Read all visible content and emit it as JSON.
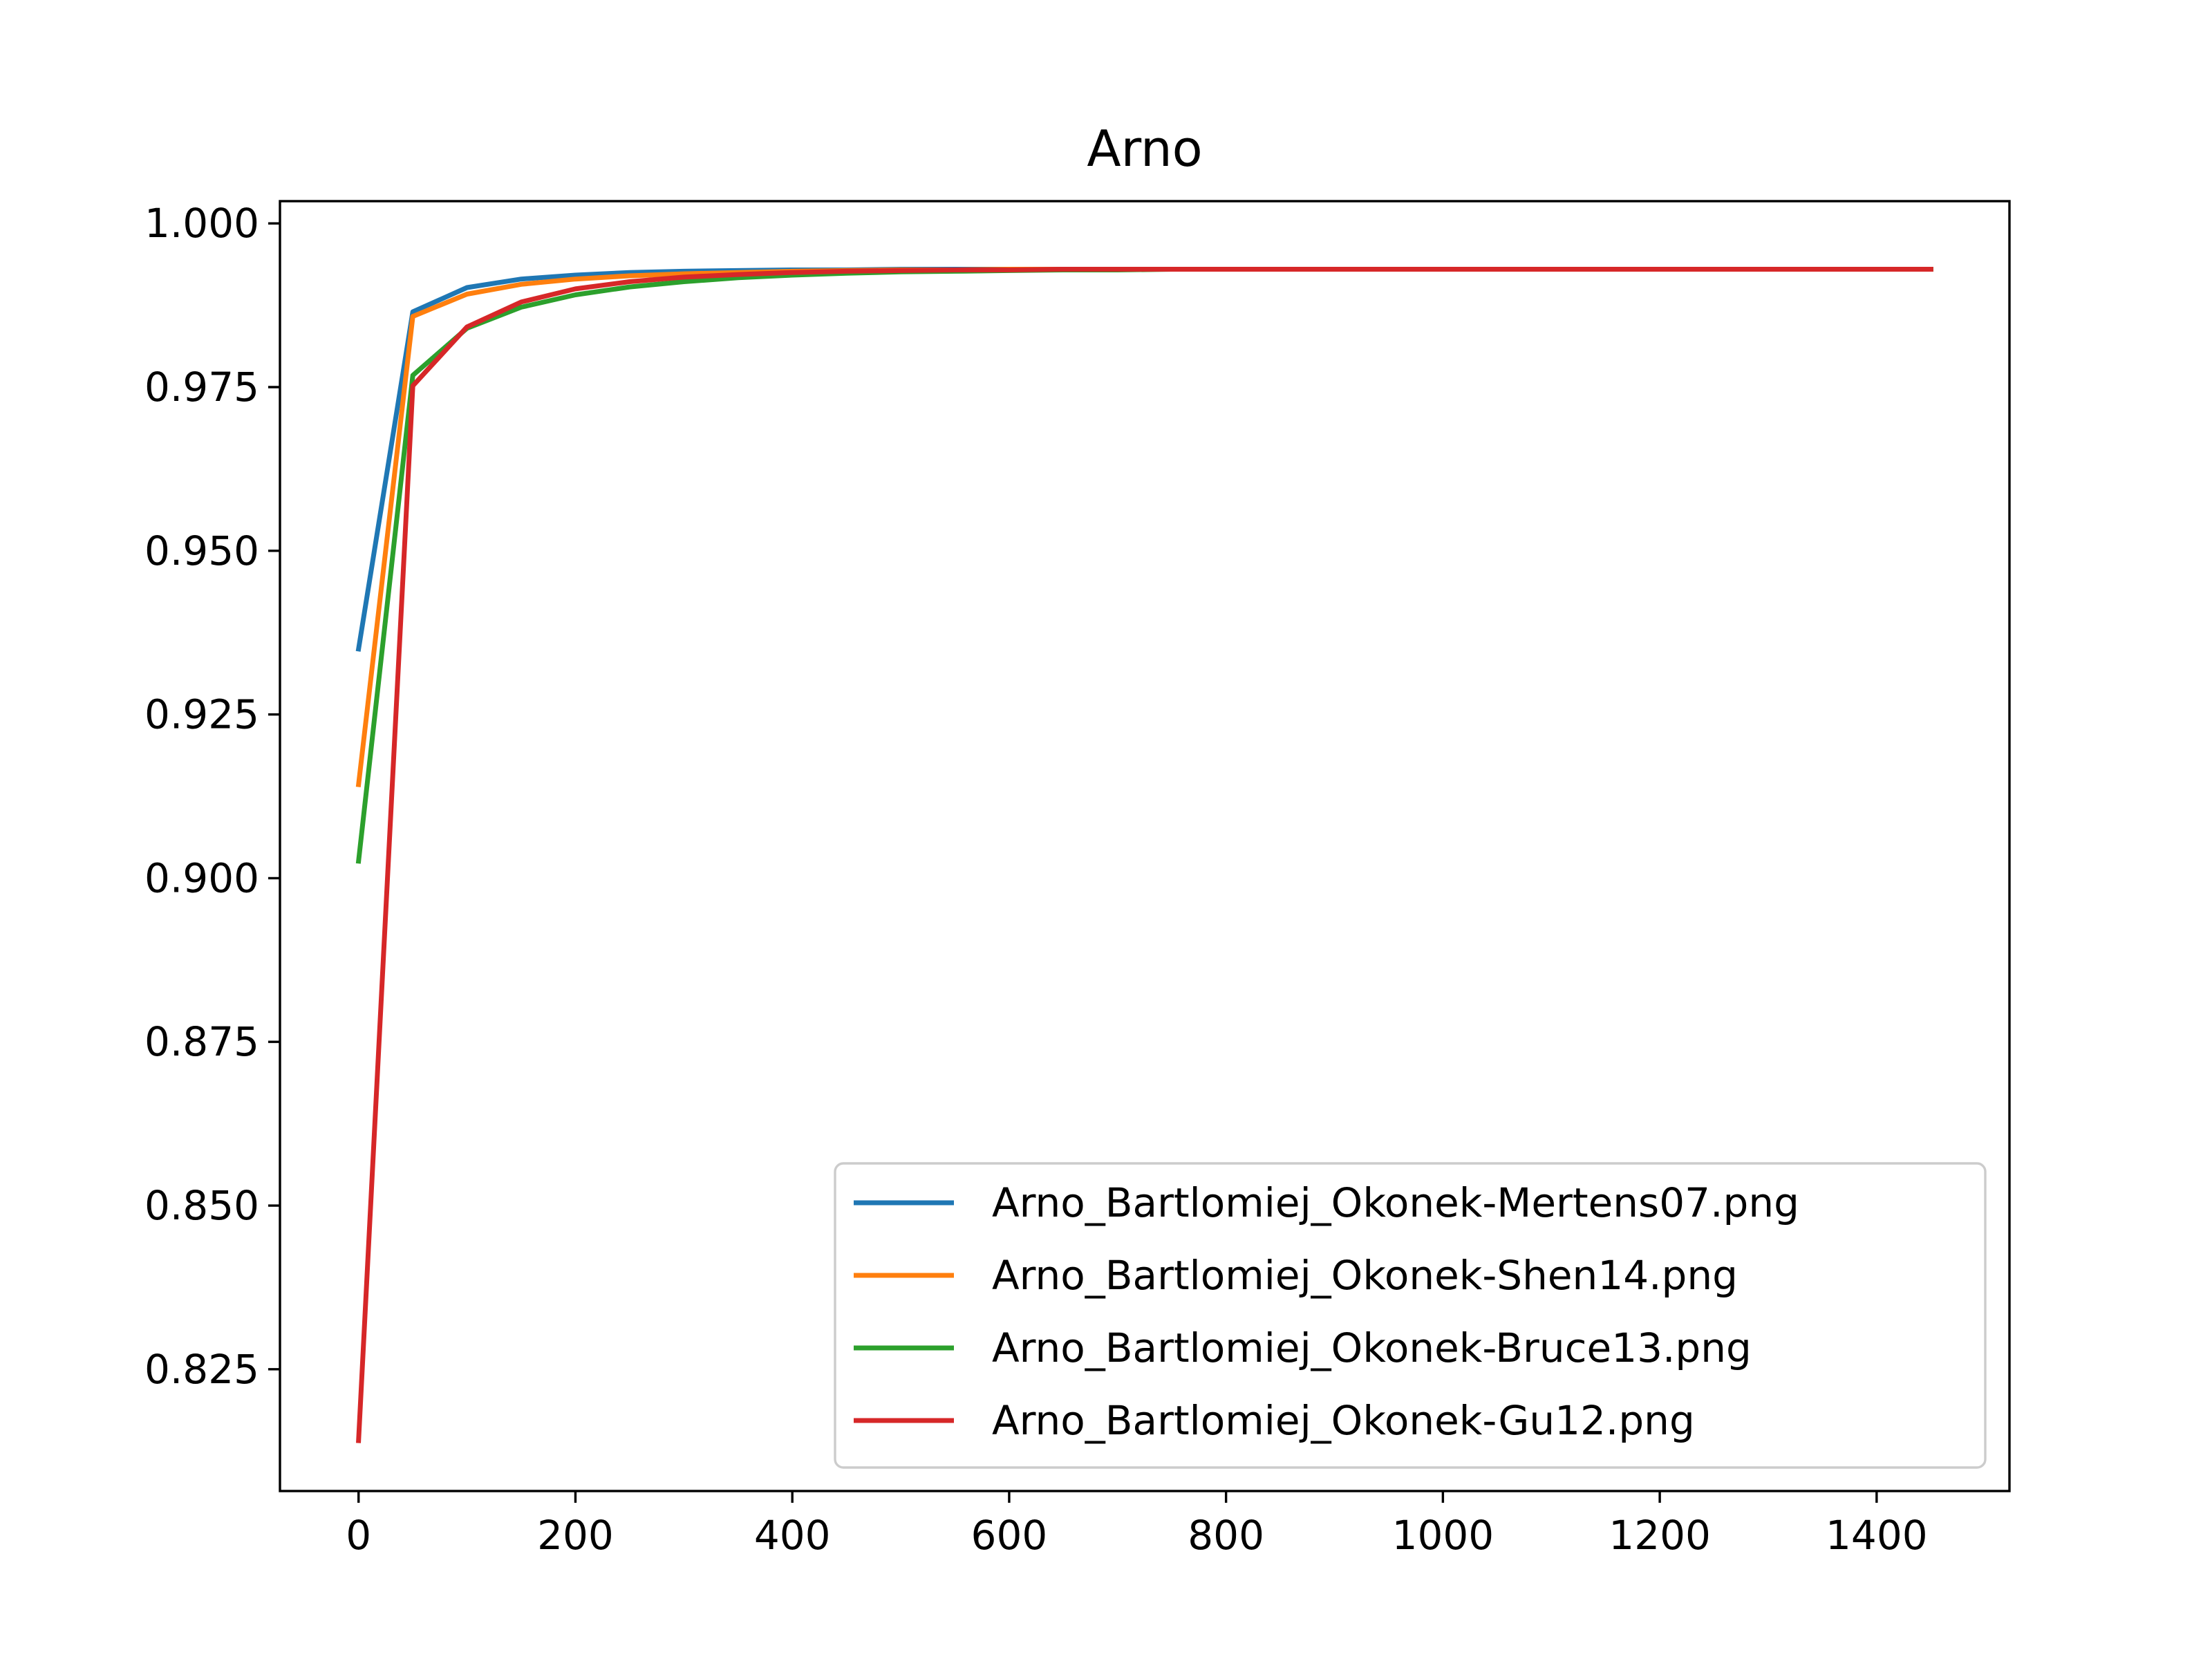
{
  "chart_data": {
    "type": "line",
    "title": "Arno",
    "xlabel": "",
    "ylabel": "",
    "xlim": [
      -72.5,
      1522.5
    ],
    "ylim": [
      0.8064,
      1.0034
    ],
    "x_ticks": [
      0,
      200,
      400,
      600,
      800,
      1000,
      1200,
      1400
    ],
    "y_ticks": [
      0.825,
      0.85,
      0.875,
      0.9,
      0.925,
      0.95,
      0.975,
      1.0
    ],
    "x_tick_labels": [
      "0",
      "200",
      "400",
      "600",
      "800",
      "1000",
      "1200",
      "1400"
    ],
    "y_tick_labels": [
      "0.825",
      "0.850",
      "0.875",
      "0.900",
      "0.925",
      "0.950",
      "0.975",
      "1.000"
    ],
    "grid": false,
    "legend_position": "lower-right",
    "x": [
      0,
      50,
      100,
      150,
      200,
      250,
      300,
      350,
      400,
      450,
      500,
      550,
      600,
      650,
      700,
      750,
      800,
      850,
      900,
      950,
      1000,
      1050,
      1100,
      1150,
      1200,
      1250,
      1300,
      1350,
      1400,
      1450
    ],
    "series": [
      {
        "name": "Arno_Bartlomiej_Okonek-Mertens07.png",
        "color": "#1f77b4",
        "values": [
          0.935,
          0.9865,
          0.9902,
          0.9915,
          0.9921,
          0.9925,
          0.9927,
          0.9928,
          0.9929,
          0.9929,
          0.993,
          0.993,
          0.993,
          0.993,
          0.993,
          0.993,
          0.993,
          0.993,
          0.993,
          0.993,
          0.993,
          0.993,
          0.993,
          0.993,
          0.993,
          0.993,
          0.993,
          0.993,
          0.993,
          0.993
        ]
      },
      {
        "name": "Arno_Bartlomiej_Okonek-Shen14.png",
        "color": "#ff7f0e",
        "values": [
          0.9143,
          0.9858,
          0.9892,
          0.9907,
          0.9915,
          0.992,
          0.9923,
          0.9925,
          0.9927,
          0.9928,
          0.9929,
          0.9929,
          0.993,
          0.993,
          0.993,
          0.993,
          0.993,
          0.993,
          0.993,
          0.993,
          0.993,
          0.993,
          0.993,
          0.993,
          0.993,
          0.993,
          0.993,
          0.993,
          0.993,
          0.993
        ]
      },
      {
        "name": "Arno_Bartlomiej_Okonek-Bruce13.png",
        "color": "#2ca02c",
        "values": [
          0.9026,
          0.9768,
          0.984,
          0.9872,
          0.9891,
          0.9903,
          0.9911,
          0.9917,
          0.9921,
          0.9924,
          0.9926,
          0.9927,
          0.9928,
          0.9929,
          0.9929,
          0.993,
          0.993,
          0.993,
          0.993,
          0.993,
          0.993,
          0.993,
          0.993,
          0.993,
          0.993,
          0.993,
          0.993,
          0.993,
          0.993,
          0.993
        ]
      },
      {
        "name": "Arno_Bartlomiej_Okonek-Gu12.png",
        "color": "#d62728",
        "values": [
          0.8141,
          0.9752,
          0.9842,
          0.988,
          0.99,
          0.9911,
          0.9918,
          0.9922,
          0.9925,
          0.9927,
          0.9928,
          0.9929,
          0.9929,
          0.993,
          0.993,
          0.993,
          0.993,
          0.993,
          0.993,
          0.993,
          0.993,
          0.993,
          0.993,
          0.993,
          0.993,
          0.993,
          0.993,
          0.993,
          0.993,
          0.993
        ]
      }
    ]
  }
}
